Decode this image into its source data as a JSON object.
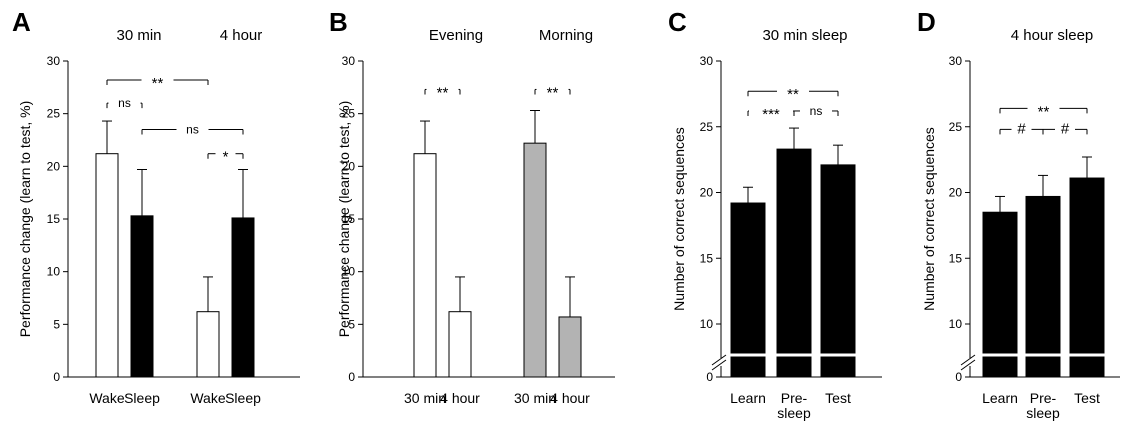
{
  "colors": {
    "open": "#ffffff",
    "filled": "#000000",
    "gray": "#b3b3b3"
  },
  "chart_data": [
    {
      "panel": "A",
      "type": "bar",
      "ylabel": "Performance change (learn to test, %)",
      "ylim": [
        0,
        30
      ],
      "yticks": [
        "0",
        "5",
        "10",
        "15",
        "20",
        "25",
        "30"
      ],
      "groups": [
        {
          "title": "30 min",
          "bars": [
            {
              "label": "Wake",
              "value": 21.2,
              "error": 3.1,
              "fill": "open"
            },
            {
              "label": "Sleep",
              "value": 15.3,
              "error": 4.4,
              "fill": "filled"
            }
          ]
        },
        {
          "title": "4 hour",
          "bars": [
            {
              "label": "Wake",
              "value": 6.2,
              "error": 3.3,
              "fill": "open"
            },
            {
              "label": "Sleep",
              "value": 15.1,
              "error": 4.6,
              "fill": "filled"
            }
          ]
        }
      ],
      "annotations": [
        {
          "from": 0,
          "to": 2,
          "y": 28.2,
          "label": "**"
        },
        {
          "from": 0,
          "to": 1,
          "y": 26.0,
          "label": "ns"
        },
        {
          "from": 1,
          "to": 3,
          "y": 23.5,
          "label": "ns"
        },
        {
          "from": 2,
          "to": 3,
          "y": 21.2,
          "label": "*"
        }
      ]
    },
    {
      "panel": "B",
      "type": "bar",
      "ylabel": "Performance change (learn to test, %)",
      "ylim": [
        0,
        30
      ],
      "yticks": [
        "0",
        "5",
        "10",
        "15",
        "20",
        "25",
        "30"
      ],
      "groups": [
        {
          "title": "Evening",
          "bars": [
            {
              "label": "30 min",
              "value": 21.2,
              "error": 3.1,
              "fill": "open"
            },
            {
              "label": "4 hour",
              "value": 6.2,
              "error": 3.3,
              "fill": "open"
            }
          ]
        },
        {
          "title": "Morning",
          "bars": [
            {
              "label": "30 min",
              "value": 22.2,
              "error": 3.1,
              "fill": "gray"
            },
            {
              "label": "4 hour",
              "value": 5.7,
              "error": 3.8,
              "fill": "gray"
            }
          ]
        }
      ],
      "annotations": [
        {
          "from": 0,
          "to": 1,
          "y": 27.3,
          "label": "**"
        },
        {
          "from": 2,
          "to": 3,
          "y": 27.3,
          "label": "**"
        }
      ]
    },
    {
      "panel": "C",
      "type": "bar",
      "title": "30 min sleep",
      "ylabel": "Number of correct sequences",
      "ylim": [
        0,
        30
      ],
      "yticks": [
        "0",
        "10",
        "15",
        "20",
        "25",
        "30"
      ],
      "axis_break": true,
      "bars": [
        {
          "label": "Learn",
          "value": 19.2,
          "error": 1.2
        },
        {
          "label": "Pre-\nsleep",
          "value": 23.3,
          "error": 1.6
        },
        {
          "label": "Test",
          "value": 22.1,
          "error": 1.5
        }
      ],
      "annotations": [
        {
          "from": 0,
          "to": 2,
          "y": 27.7,
          "label": "**"
        },
        {
          "from": 0,
          "to": 1,
          "y": 26.2,
          "label": "***"
        },
        {
          "from": 1,
          "to": 2,
          "y": 26.2,
          "label": "ns"
        }
      ]
    },
    {
      "panel": "D",
      "type": "bar",
      "title": "4 hour sleep",
      "ylabel": "Number of correct sequences",
      "ylim": [
        0,
        30
      ],
      "yticks": [
        "0",
        "10",
        "15",
        "20",
        "25",
        "30"
      ],
      "axis_break": true,
      "bars": [
        {
          "label": "Learn",
          "value": 18.5,
          "error": 1.2
        },
        {
          "label": "Pre-\nsleep",
          "value": 19.7,
          "error": 1.6
        },
        {
          "label": "Test",
          "value": 21.1,
          "error": 1.6
        }
      ],
      "annotations": [
        {
          "from": 0,
          "to": 2,
          "y": 26.4,
          "label": "**"
        },
        {
          "from": 0,
          "to": 1,
          "y": 24.8,
          "label": "#"
        },
        {
          "from": 1,
          "to": 2,
          "y": 24.8,
          "label": "#"
        }
      ]
    }
  ]
}
